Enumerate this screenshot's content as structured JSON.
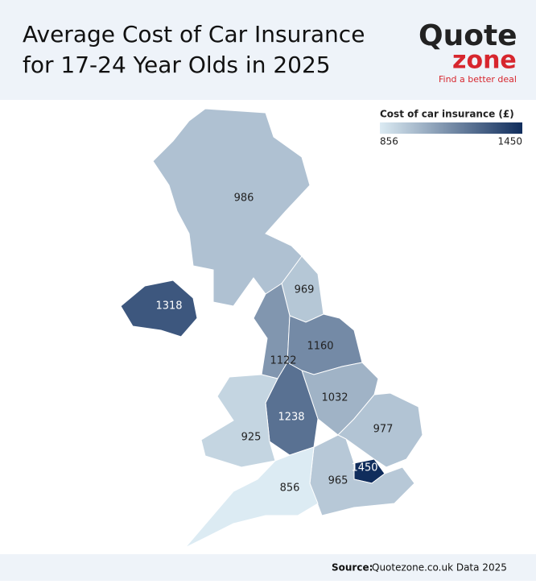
{
  "header": {
    "title": [
      "Average Cost of Car Insurance",
      "for 17-24 Year Olds in 2025"
    ],
    "logo": {
      "word1": "Quote",
      "word2": "zone",
      "tagline": "Find a better deal"
    }
  },
  "map": {
    "legend": {
      "title": "Cost of car insurance (£)",
      "min": 856,
      "max": 1450,
      "low_color": "#dcebf3",
      "high_color": "#102d5c"
    },
    "regions": [
      {
        "value": 986
      },
      {
        "value": 969
      },
      {
        "value": 1122
      },
      {
        "value": 1160
      },
      {
        "value": 1032
      },
      {
        "value": 1238
      },
      {
        "value": 925
      },
      {
        "value": 977
      },
      {
        "value": 1450
      },
      {
        "value": 965
      },
      {
        "value": 856
      },
      {
        "value": 1318
      }
    ]
  },
  "footer": {
    "label": "Source:",
    "text": "Quotezone.co.uk Data 2025"
  }
}
